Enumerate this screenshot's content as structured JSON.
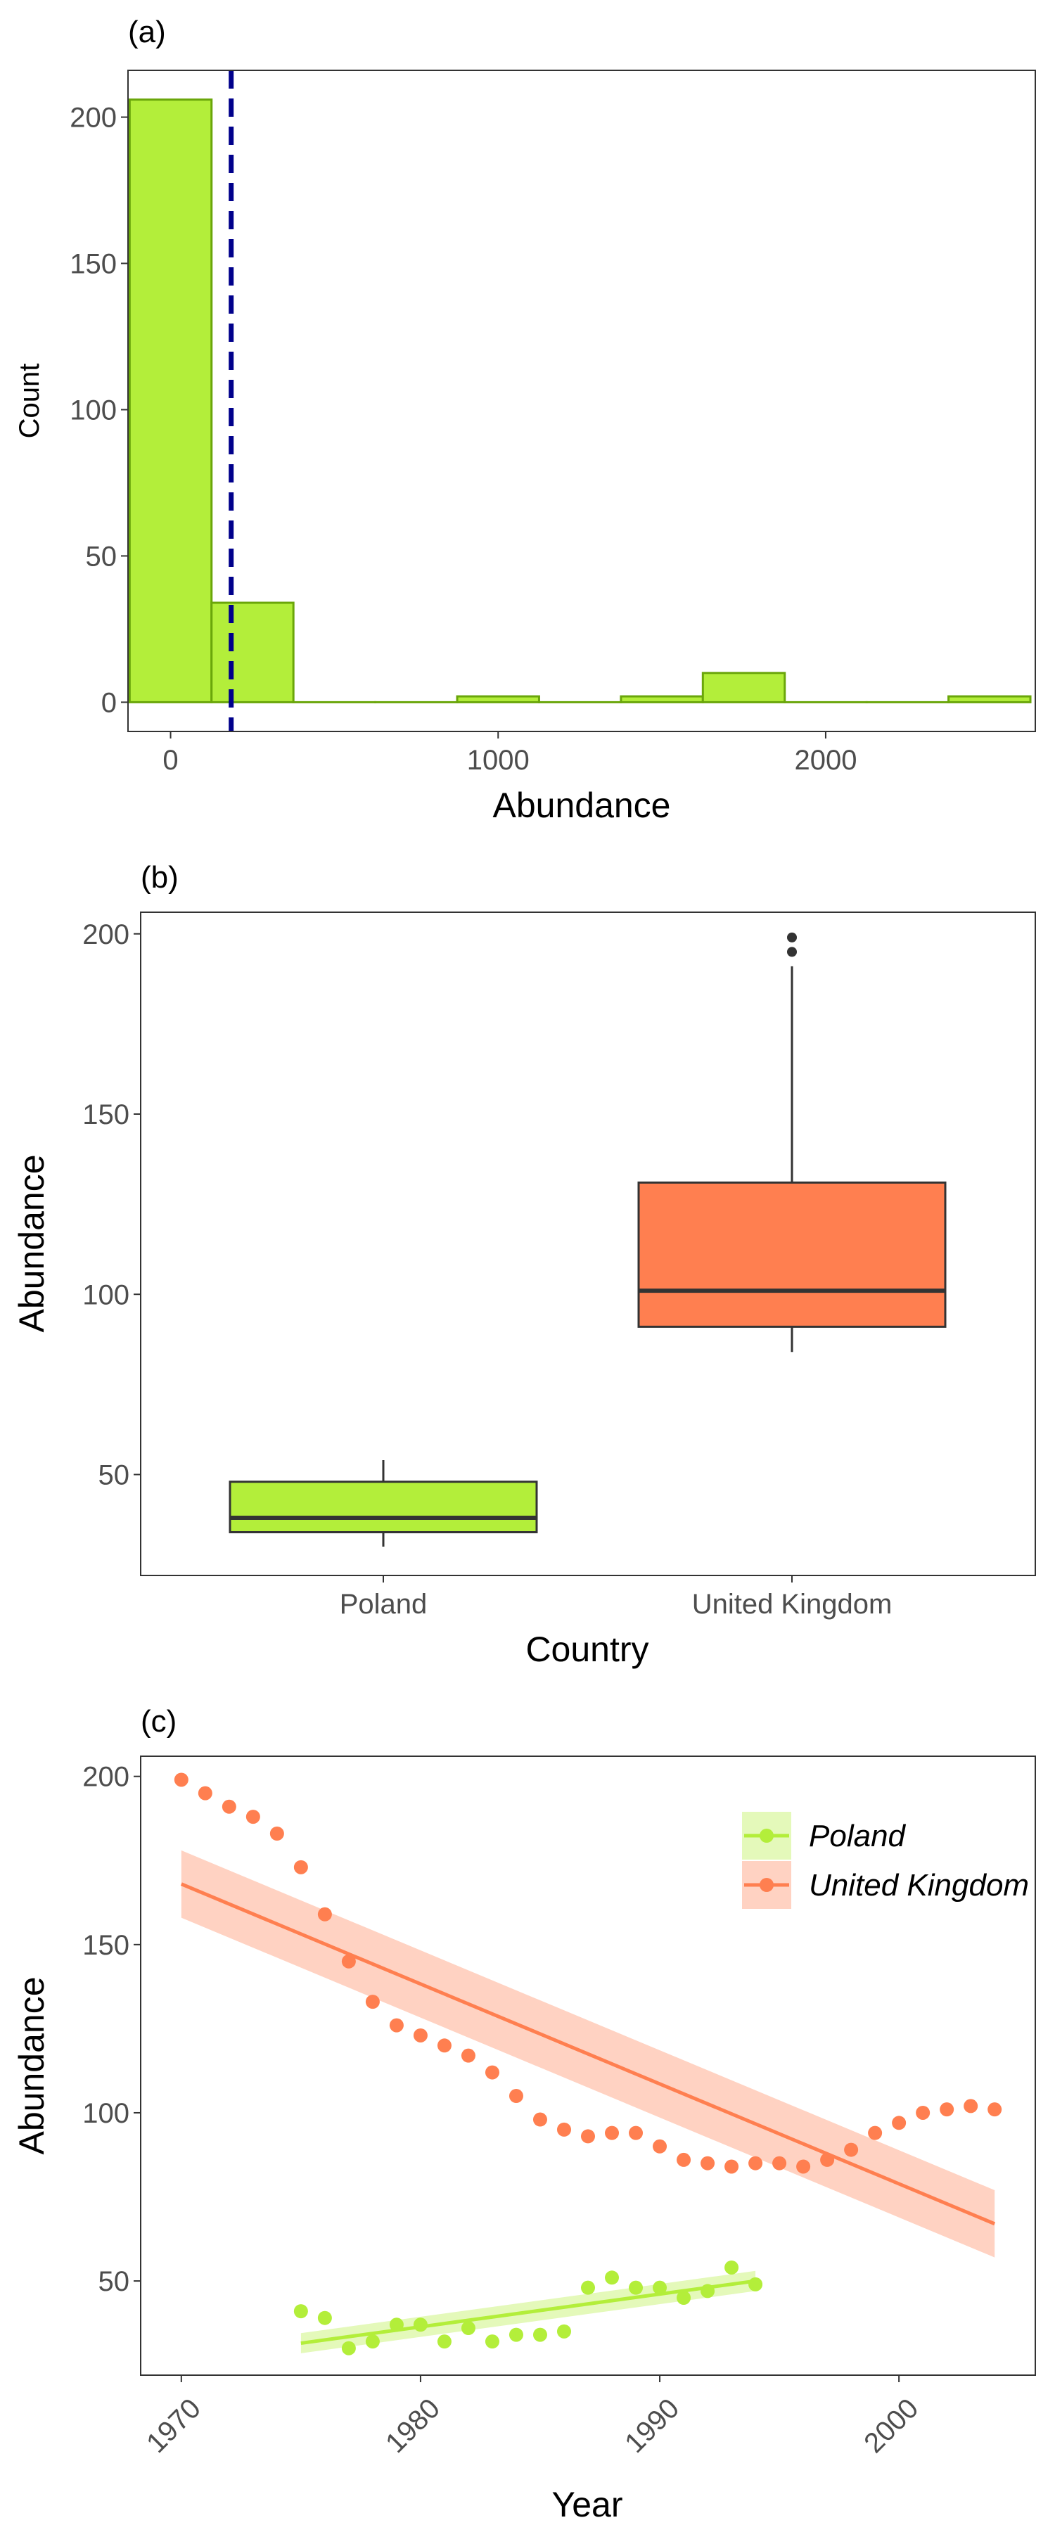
{
  "colors": {
    "green": "#b3ee3a",
    "green_edge": "#6aa60a",
    "orange": "#ff7f50",
    "median_line": "#333333",
    "dashed_line": "#00008b"
  },
  "chart_data": [
    {
      "type": "histogram",
      "panel_label": "(a)",
      "xlabel": "Abundance",
      "ylabel": "Count",
      "xlim": [
        -130,
        2640
      ],
      "ylim": [
        -10,
        216
      ],
      "xticks": [
        0,
        1000,
        2000
      ],
      "yticks": [
        0,
        50,
        100,
        150,
        200
      ],
      "bins": [
        {
          "start": -125,
          "end": 125,
          "count": 206
        },
        {
          "start": 125,
          "end": 375,
          "count": 34
        },
        {
          "start": 375,
          "end": 625,
          "count": 0
        },
        {
          "start": 625,
          "end": 875,
          "count": 0
        },
        {
          "start": 875,
          "end": 1125,
          "count": 2
        },
        {
          "start": 1125,
          "end": 1375,
          "count": 0
        },
        {
          "start": 1375,
          "end": 1625,
          "count": 2
        },
        {
          "start": 1625,
          "end": 1875,
          "count": 10
        },
        {
          "start": 1875,
          "end": 2125,
          "count": 0
        },
        {
          "start": 2125,
          "end": 2375,
          "count": 0
        },
        {
          "start": 2375,
          "end": 2625,
          "count": 2
        }
      ],
      "mean_line_x": 185,
      "grid": false
    },
    {
      "type": "box",
      "panel_label": "(b)",
      "xlabel": "Country",
      "ylabel": "Abundance",
      "ylim": [
        22,
        206
      ],
      "yticks": [
        50,
        100,
        150,
        200
      ],
      "categories": [
        "Poland",
        "United Kingdom"
      ],
      "boxes": [
        {
          "category": "Poland",
          "min": 30,
          "q1": 34,
          "median": 38,
          "q3": 48,
          "max": 54,
          "outliers": []
        },
        {
          "category": "United Kingdom",
          "min": 84,
          "q1": 91,
          "median": 101,
          "q3": 131,
          "max": 191,
          "outliers": [
            195,
            199
          ]
        }
      ],
      "grid": false
    },
    {
      "type": "scatter",
      "panel_label": "(c)",
      "xlabel": "Year",
      "ylabel": "Abundance",
      "xlim": [
        1968.3,
        2005.7
      ],
      "ylim": [
        22,
        206
      ],
      "xticks": [
        1970,
        1980,
        1990,
        2000
      ],
      "yticks": [
        50,
        100,
        150,
        200
      ],
      "legend_position": "top-right",
      "series": [
        {
          "name": "Poland",
          "color": "green",
          "x": [
            1975,
            1976,
            1977,
            1978,
            1979,
            1980,
            1981,
            1982,
            1983,
            1984,
            1985,
            1986,
            1987,
            1988,
            1989,
            1990,
            1991,
            1992,
            1993,
            1994
          ],
          "y": [
            41,
            39,
            30,
            32,
            37,
            37,
            32,
            36,
            32,
            34,
            34,
            35,
            48,
            51,
            48,
            48,
            45,
            47,
            54,
            49
          ],
          "fit": {
            "x": [
              1975,
              1994
            ],
            "y": [
              31.5,
              50
            ],
            "se_low": [
              28.5,
              47
            ],
            "se_high": [
              34.5,
              53
            ]
          }
        },
        {
          "name": "United Kingdom",
          "color": "orange",
          "x": [
            1970,
            1971,
            1972,
            1973,
            1974,
            1975,
            1976,
            1977,
            1978,
            1979,
            1980,
            1981,
            1982,
            1983,
            1984,
            1985,
            1986,
            1987,
            1988,
            1989,
            1990,
            1991,
            1992,
            1993,
            1994,
            1995,
            1996,
            1997,
            1998,
            1999,
            2000,
            2001,
            2002,
            2003,
            2004
          ],
          "y": [
            199,
            195,
            191,
            188,
            183,
            173,
            159,
            145,
            133,
            126,
            123,
            120,
            117,
            112,
            105,
            98,
            95,
            93,
            94,
            94,
            90,
            86,
            85,
            84,
            85,
            85,
            84,
            86,
            89,
            94,
            97,
            100,
            101,
            102,
            101
          ],
          "fit": {
            "x": [
              1970,
              2004
            ],
            "y": [
              168,
              67
            ],
            "se_low": [
              158,
              57
            ],
            "se_high": [
              178,
              77
            ]
          }
        }
      ],
      "grid": false
    }
  ]
}
